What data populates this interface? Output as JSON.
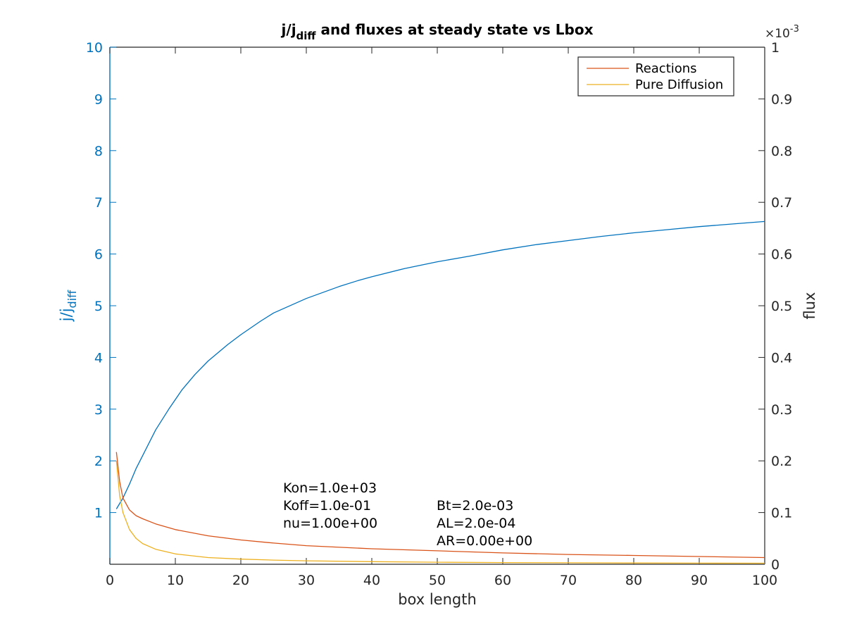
{
  "chart_data": {
    "type": "line",
    "title_main": "j/j",
    "title_sub": "diff",
    "title_rest": " and fluxes at steady state vs Lbox",
    "xlabel": "box length",
    "ylabel_left_main": "j/j",
    "ylabel_left_sub": "diff",
    "ylabel_right": "flux",
    "right_exponent_base": "×10",
    "right_exponent_power": "-3",
    "xlim": [
      0,
      100
    ],
    "ylim_left": [
      0,
      10
    ],
    "ylim_right": [
      0,
      1
    ],
    "x_ticks": [
      "0",
      "10",
      "20",
      "30",
      "40",
      "50",
      "60",
      "70",
      "80",
      "90",
      "100"
    ],
    "left_ticks": [
      "1",
      "2",
      "3",
      "4",
      "5",
      "6",
      "7",
      "8",
      "9",
      "10"
    ],
    "right_ticks": [
      "0",
      "0.1",
      "0.2",
      "0.3",
      "0.4",
      "0.5",
      "0.6",
      "0.7",
      "0.8",
      "0.9",
      "1"
    ],
    "grid": false,
    "legend_position": "top-right",
    "colors": {
      "ratio": "#0072bd",
      "reactions": "#d95319",
      "diffusion": "#edb120",
      "left_axis": "#0072bd",
      "right_axis": "#262626"
    },
    "ratio_series": {
      "axis": "left",
      "x": [
        1,
        2,
        3,
        4,
        5,
        7,
        9,
        11,
        13,
        15,
        18,
        20,
        23,
        25,
        30,
        35,
        38,
        40,
        45,
        50,
        55,
        60,
        65,
        70,
        75,
        80,
        85,
        90,
        95,
        100
      ],
      "values": [
        1.07,
        1.28,
        1.55,
        1.85,
        2.1,
        2.6,
        3.0,
        3.37,
        3.67,
        3.93,
        4.25,
        4.44,
        4.7,
        4.86,
        5.14,
        5.37,
        5.49,
        5.56,
        5.72,
        5.85,
        5.96,
        6.08,
        6.18,
        6.26,
        6.34,
        6.41,
        6.47,
        6.53,
        6.58,
        6.63
      ]
    },
    "series": [
      {
        "name": "Reactions",
        "axis": "right",
        "x": [
          1,
          1.5,
          2,
          3,
          4,
          5,
          7,
          10,
          15,
          20,
          25,
          30,
          40,
          50,
          60,
          70,
          80,
          90,
          100
        ],
        "values": [
          0.217,
          0.16,
          0.128,
          0.105,
          0.094,
          0.088,
          0.078,
          0.067,
          0.055,
          0.047,
          0.041,
          0.036,
          0.03,
          0.026,
          0.022,
          0.019,
          0.017,
          0.015,
          0.013
        ]
      },
      {
        "name": "Pure Diffusion",
        "axis": "right",
        "x": [
          1,
          1.5,
          2,
          3,
          4,
          5,
          7,
          10,
          15,
          20,
          25,
          30,
          40,
          50,
          60,
          70,
          80,
          90,
          100
        ],
        "values": [
          0.2,
          0.133,
          0.1,
          0.067,
          0.05,
          0.04,
          0.029,
          0.02,
          0.013,
          0.01,
          0.008,
          0.0067,
          0.005,
          0.004,
          0.0033,
          0.0029,
          0.0025,
          0.0022,
          0.002
        ]
      }
    ],
    "annotations": [
      "Kon=1.0e+03",
      "Koff=1.0e-01",
      "nu=1.00e+00",
      "Bt=2.0e-03",
      "AL=2.0e-04",
      "AR=0.00e+00"
    ]
  }
}
